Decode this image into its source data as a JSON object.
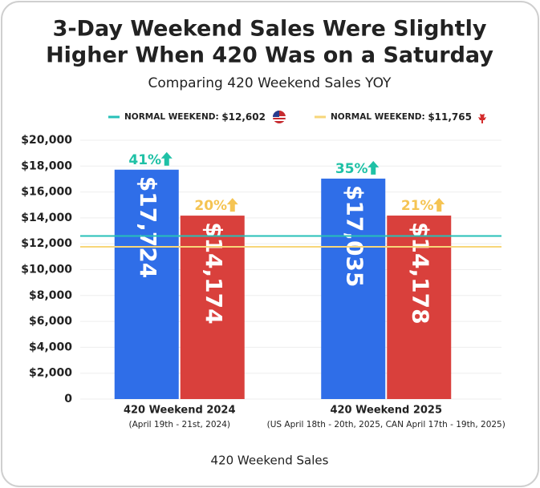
{
  "chart_data": {
    "type": "bar",
    "title": [
      "3-Day Weekend Sales Were Slightly",
      "Higher When 420 Was on a Saturday"
    ],
    "subtitle": "Comparing 420 Weekend Sales YOY",
    "x_label": "420 Weekend Sales",
    "categories": [
      "420 Weekend 2024",
      "420 Weekend 2025"
    ],
    "category_notes": [
      "(April 19th - 21st, 2024)",
      "(US April 18th - 20th, 2025, CAN April 17th - 19th, 2025)"
    ],
    "series": [
      {
        "color": "#2f6ee8",
        "values": [
          17724,
          17035
        ],
        "value_labels": [
          "$17,724",
          "$17,035"
        ],
        "change_labels": [
          "41%",
          "35%"
        ],
        "change_color": "#1fc1a6"
      },
      {
        "color": "#d9403c",
        "values": [
          14174,
          14178
        ],
        "value_labels": [
          "$14,174",
          "$14,178"
        ],
        "change_labels": [
          "20%",
          "21%"
        ],
        "change_color": "#f5c453"
      }
    ],
    "reference_lines": [
      {
        "name": "NORMAL WEEKEND:",
        "value": 12602,
        "value_label": "$12,602",
        "color": "#27c0b8"
      },
      {
        "name": "NORMAL WEEKEND:",
        "value": 11765,
        "value_label": "$11,765",
        "color": "#f7d679"
      }
    ],
    "ylim": [
      0,
      20000
    ],
    "yticks": [
      {
        "value": 0,
        "label": "0"
      },
      {
        "value": 2000,
        "label": "$2,000"
      },
      {
        "value": 4000,
        "label": "$4,000"
      },
      {
        "value": 6000,
        "label": "$6,000"
      },
      {
        "value": 8000,
        "label": "$8,000"
      },
      {
        "value": 10000,
        "label": "$10,000"
      },
      {
        "value": 12000,
        "label": "$12,000"
      },
      {
        "value": 14000,
        "label": "$14,000"
      },
      {
        "value": 16000,
        "label": "$16,000"
      },
      {
        "value": 18000,
        "label": "$18,000"
      },
      {
        "value": 20000,
        "label": "$20,000"
      }
    ],
    "grid": true
  }
}
